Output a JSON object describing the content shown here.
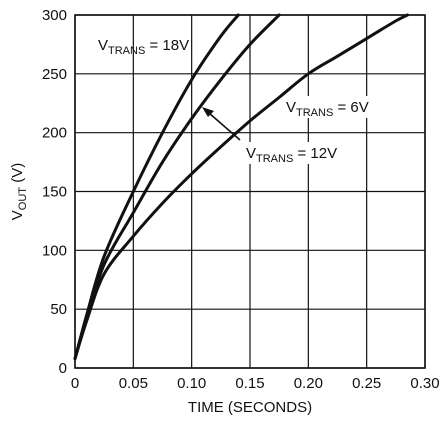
{
  "chart_data": {
    "type": "line",
    "xlabel": "TIME (SECONDS)",
    "ylabel": {
      "main": "V",
      "sub": "OUT",
      "unit": " (V)"
    },
    "xlim": [
      0,
      0.3
    ],
    "ylim": [
      0,
      300
    ],
    "x_ticks": [
      0,
      0.05,
      0.1,
      0.15,
      0.2,
      0.25,
      0.3
    ],
    "x_tick_labels": [
      "0",
      "0.05",
      "0.10",
      "0.15",
      "0.20",
      "0.25",
      "0.30"
    ],
    "y_ticks": [
      0,
      50,
      100,
      150,
      200,
      250,
      300
    ],
    "y_tick_labels": [
      "0",
      "50",
      "100",
      "150",
      "200",
      "250",
      "300"
    ],
    "grid": true,
    "series": [
      {
        "name": "V_TRANS = 18V",
        "x": [
          0,
          0.01,
          0.025,
          0.05,
          0.075,
          0.1,
          0.125,
          0.14
        ],
        "y": [
          8,
          45,
          95,
          150,
          200,
          245,
          282,
          300
        ]
      },
      {
        "name": "V_TRANS = 12V",
        "x": [
          0,
          0.01,
          0.025,
          0.05,
          0.075,
          0.1,
          0.125,
          0.15,
          0.175
        ],
        "y": [
          8,
          42,
          88,
          132,
          175,
          212,
          245,
          275,
          300
        ]
      },
      {
        "name": "V_TRANS = 6V",
        "x": [
          0,
          0.01,
          0.025,
          0.05,
          0.075,
          0.1,
          0.125,
          0.15,
          0.175,
          0.2,
          0.225,
          0.25,
          0.275,
          0.285
        ],
        "y": [
          8,
          40,
          80,
          112,
          140,
          165,
          188,
          210,
          230,
          250,
          265,
          280,
          295,
          300
        ]
      }
    ],
    "annotations": [
      {
        "main": "V",
        "sub": "TRANS",
        "rest": " = 18V"
      },
      {
        "main": "V",
        "sub": "TRANS",
        "rest": " = 6V"
      },
      {
        "main": "V",
        "sub": "TRANS",
        "rest": " = 12V"
      }
    ]
  }
}
